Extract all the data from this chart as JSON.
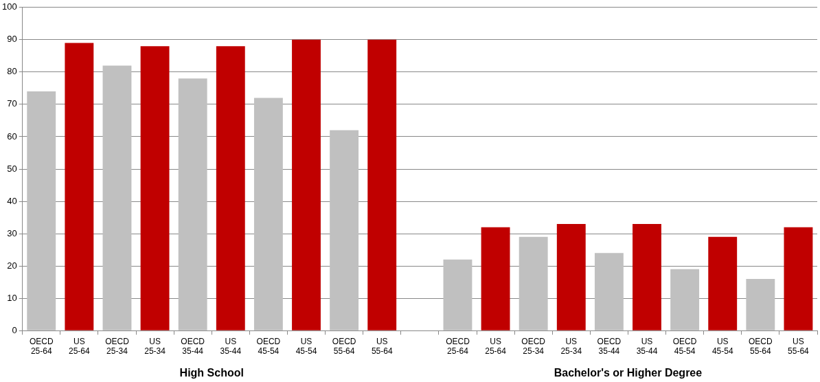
{
  "chart_data": {
    "type": "bar",
    "categories": [
      "OECD\n25-64",
      "US\n25-64",
      "OECD\n25-34",
      "US\n25-34",
      "OECD\n35-44",
      "US\n35-44",
      "OECD\n45-54",
      "US\n45-54",
      "OECD\n55-64",
      "US\n55-64",
      null,
      "OECD\n25-64",
      "US\n25-64",
      "OECD\n25-34",
      "US\n25-34",
      "OECD\n35-44",
      "US\n35-44",
      "OECD\n45-54",
      "US\n45-54",
      "OECD\n55-64",
      "US\n55-64"
    ],
    "values": [
      74,
      89,
      82,
      88,
      78,
      88,
      72,
      90,
      62,
      90,
      null,
      22,
      32,
      29,
      33,
      24,
      33,
      19,
      29,
      16,
      32
    ],
    "colors": [
      "#c0c0c0",
      "#c00000",
      "#c0c0c0",
      "#c00000",
      "#c0c0c0",
      "#c00000",
      "#c0c0c0",
      "#c00000",
      "#c0c0c0",
      "#c00000",
      null,
      "#c0c0c0",
      "#c00000",
      "#c0c0c0",
      "#c00000",
      "#c0c0c0",
      "#c00000",
      "#c0c0c0",
      "#c00000",
      "#c0c0c0",
      "#c00000"
    ],
    "ylim": [
      0,
      100
    ],
    "yticks": [
      0,
      10,
      20,
      30,
      40,
      50,
      60,
      70,
      80,
      90,
      100
    ],
    "grid": "y",
    "legend": false,
    "annotations": [
      "High School",
      "Bachelor's or Higher Degree"
    ]
  }
}
